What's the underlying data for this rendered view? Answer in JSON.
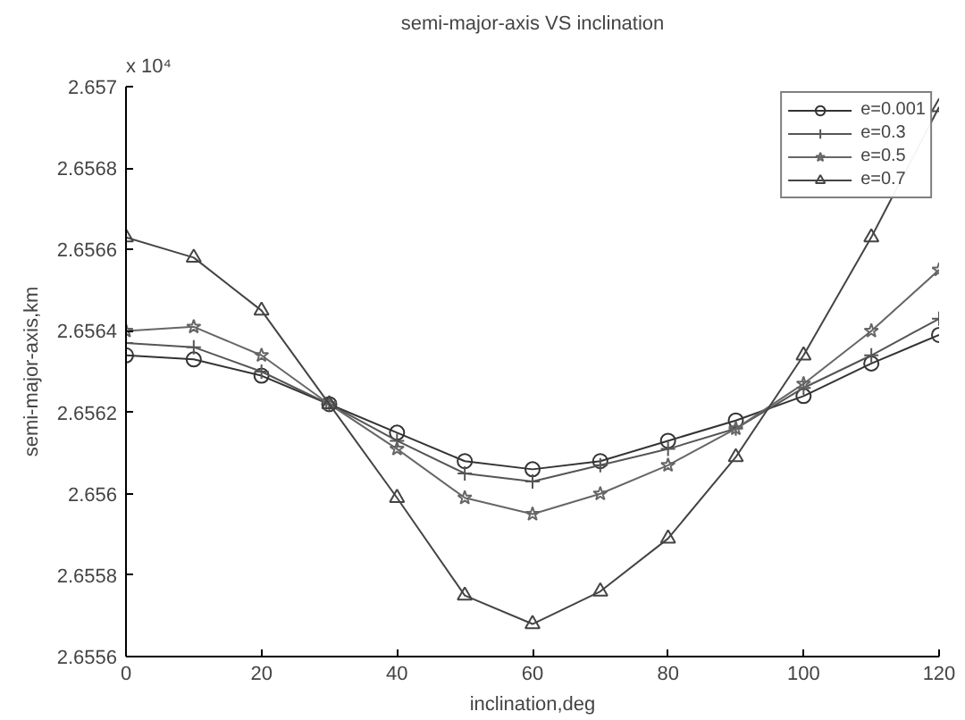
{
  "chart_data": {
    "type": "line",
    "title": "semi-major-axis VS inclination",
    "xlabel": "inclination,deg",
    "ylabel": "semi-major-axis,km",
    "annotations": [
      "x 10⁴"
    ],
    "x": [
      0,
      10,
      20,
      30,
      40,
      50,
      60,
      70,
      80,
      90,
      100,
      110,
      120
    ],
    "series": [
      {
        "name": "e=0.001",
        "color": "#333333",
        "marker": "circle",
        "values": [
          2.65634,
          2.65633,
          2.65629,
          2.65622,
          2.65615,
          2.65608,
          2.65606,
          2.65608,
          2.65613,
          2.65618,
          2.65624,
          2.65632,
          2.65639
        ]
      },
      {
        "name": "e=0.3",
        "color": "#555555",
        "marker": "cross",
        "values": [
          2.65637,
          2.65636,
          2.6563,
          2.65622,
          2.65613,
          2.65605,
          2.65603,
          2.65607,
          2.65611,
          2.65616,
          2.65626,
          2.65634,
          2.65643
        ]
      },
      {
        "name": "e=0.5",
        "color": "#666666",
        "marker": "star",
        "values": [
          2.6564,
          2.65641,
          2.65634,
          2.65622,
          2.65611,
          2.65599,
          2.65595,
          2.656,
          2.65607,
          2.65616,
          2.65627,
          2.6564,
          2.65655
        ]
      },
      {
        "name": "e=0.7",
        "color": "#444444",
        "marker": "triangle",
        "values": [
          2.65663,
          2.65658,
          2.65645,
          2.65622,
          2.65599,
          2.65575,
          2.65568,
          2.65576,
          2.65589,
          2.65609,
          2.65634,
          2.65663,
          2.65695
        ]
      }
    ],
    "xlim": [
      0,
      120
    ],
    "xticks": [
      0,
      20,
      40,
      60,
      80,
      100,
      120
    ],
    "ylim": [
      2.6556,
      2.657
    ],
    "yticks": [
      2.6556,
      2.6558,
      2.656,
      2.6562,
      2.6564,
      2.6566,
      2.6568,
      2.657
    ],
    "grid": false,
    "legend": "top right",
    "line_style": "solid"
  }
}
